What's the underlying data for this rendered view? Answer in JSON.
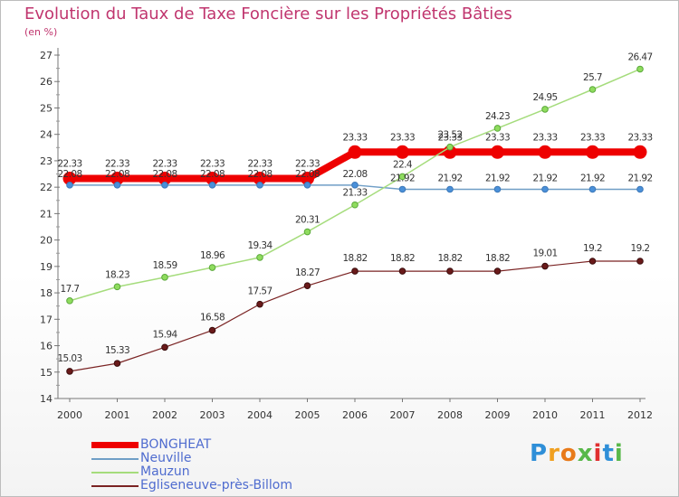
{
  "chart_data": {
    "type": "line",
    "title": "Evolution du Taux de Taxe Foncière sur les Propriétés Bâties",
    "ylabel": "(en %)",
    "xlabel": "",
    "x": [
      "2000",
      "2001",
      "2002",
      "2003",
      "2004",
      "2005",
      "2006",
      "2007",
      "2008",
      "2009",
      "2010",
      "2011",
      "2012"
    ],
    "ylim": [
      14,
      27
    ],
    "yticks": [
      "14",
      "15",
      "16",
      "17",
      "18",
      "19",
      "20",
      "21",
      "22",
      "23",
      "24",
      "25",
      "26",
      "27"
    ],
    "grid": false,
    "legend_position": "bottom-left",
    "series": [
      {
        "name": "BONGHEAT",
        "color": "#ee0000",
        "values": [
          22.33,
          22.33,
          22.33,
          22.33,
          22.33,
          22.33,
          23.33,
          23.33,
          23.33,
          23.33,
          23.33,
          23.33,
          23.33
        ],
        "labels": [
          "22.33",
          "22.33",
          "22.33",
          "22.33",
          "22.33",
          "22.33",
          "23.33",
          "23.33",
          "23.33",
          "23.33",
          "23.33",
          "23.33",
          "23.33"
        ]
      },
      {
        "name": "Neuville",
        "color": "#6f9ec6",
        "values": [
          22.08,
          22.08,
          22.08,
          22.08,
          22.08,
          22.08,
          22.08,
          21.92,
          21.92,
          21.92,
          21.92,
          21.92,
          21.92
        ],
        "labels": [
          "22.08",
          "22.08",
          "22.08",
          "22.08",
          "22.08",
          "22.08",
          "22.08",
          "21.92",
          "21.92",
          "21.92",
          "21.92",
          "21.92",
          "21.92"
        ]
      },
      {
        "name": "Mauzun",
        "color": "#a5dc7c",
        "values": [
          17.7,
          18.23,
          18.59,
          18.96,
          19.34,
          20.31,
          21.33,
          22.4,
          23.52,
          24.23,
          24.95,
          25.7,
          26.47
        ],
        "labels": [
          "17.7",
          "18.23",
          "18.59",
          "18.96",
          "19.34",
          "20.31",
          "21.33",
          "22.4",
          "23.52",
          "24.23",
          "24.95",
          "25.7",
          "26.47"
        ]
      },
      {
        "name": "Egliseneuve-près-Billom",
        "color": "#7a2323",
        "values": [
          15.03,
          15.33,
          15.94,
          16.58,
          17.57,
          18.27,
          18.82,
          18.82,
          18.82,
          18.82,
          19.01,
          19.2,
          19.2
        ],
        "labels": [
          "15.03",
          "15.33",
          "15.94",
          "16.58",
          "17.57",
          "18.27",
          "18.82",
          "18.82",
          "18.82",
          "18.82",
          "19.01",
          "19.2",
          "19.2"
        ]
      }
    ]
  },
  "branding": {
    "logo_letters": [
      "P",
      "r",
      "o",
      "x",
      "i",
      "t",
      "i"
    ],
    "logo_colors": [
      "#2f8fd8",
      "#f0a020",
      "#e87a1a",
      "#58b84a",
      "#e03030",
      "#2f8fd8",
      "#58b84a"
    ]
  }
}
